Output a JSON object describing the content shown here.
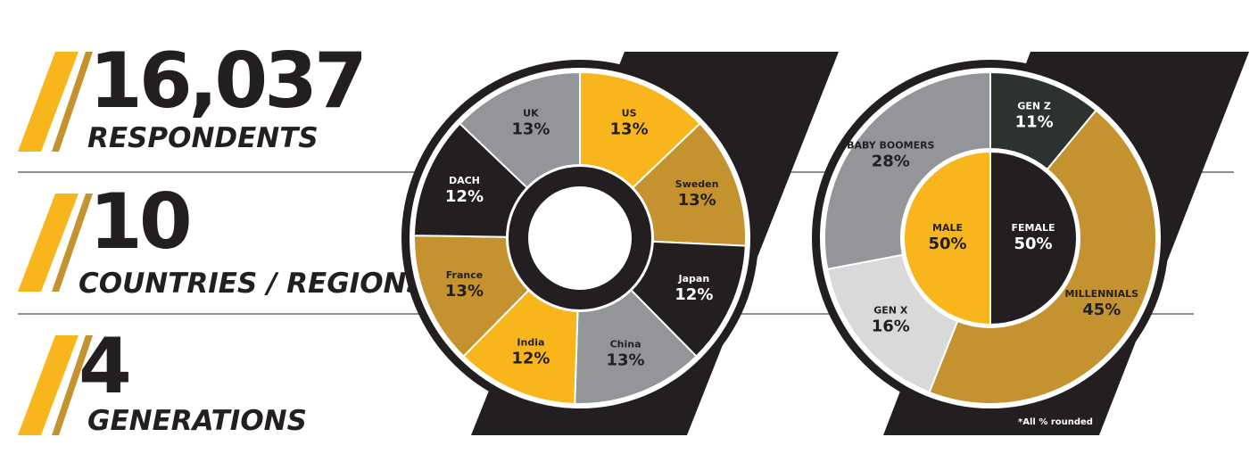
{
  "stats": [
    {
      "number": "16,037",
      "label": "RESPONDENTS"
    },
    {
      "number": "10",
      "label": "COUNTRIES / REGIONS"
    },
    {
      "number": "4",
      "label": "GENERATIONS"
    }
  ],
  "chart_data": [
    {
      "type": "donut",
      "categories": [
        "US",
        "Sweden",
        "Japan",
        "China",
        "India",
        "France",
        "DACH",
        "UK"
      ],
      "values": [
        13,
        13,
        12,
        13,
        12,
        13,
        12,
        13
      ],
      "value_labels": [
        "13%",
        "13%",
        "12%",
        "13%",
        "12%",
        "13%",
        "12%",
        "13%"
      ],
      "colors": [
        "#f8b61c",
        "#c4922e",
        "#231f20",
        "#939598",
        "#f8b61c",
        "#c4922e",
        "#231f20",
        "#939598"
      ]
    },
    {
      "type": "donut",
      "categories": [
        "GEN Z",
        "MILLENNIALS",
        "GEN X",
        "BABY BOOMERS"
      ],
      "values": [
        11,
        45,
        16,
        28
      ],
      "value_labels": [
        "11%",
        "45%",
        "16%",
        "28%"
      ],
      "colors": [
        "#2e322f",
        "#c4922e",
        "#d9d9d9",
        "#939598"
      ]
    },
    {
      "type": "pie",
      "categories": [
        "FEMALE",
        "MALE"
      ],
      "values": [
        50,
        50
      ],
      "value_labels": [
        "50%",
        "50%"
      ],
      "colors": [
        "#231f20",
        "#f8b61c"
      ]
    }
  ],
  "footnote": "*All % rounded"
}
